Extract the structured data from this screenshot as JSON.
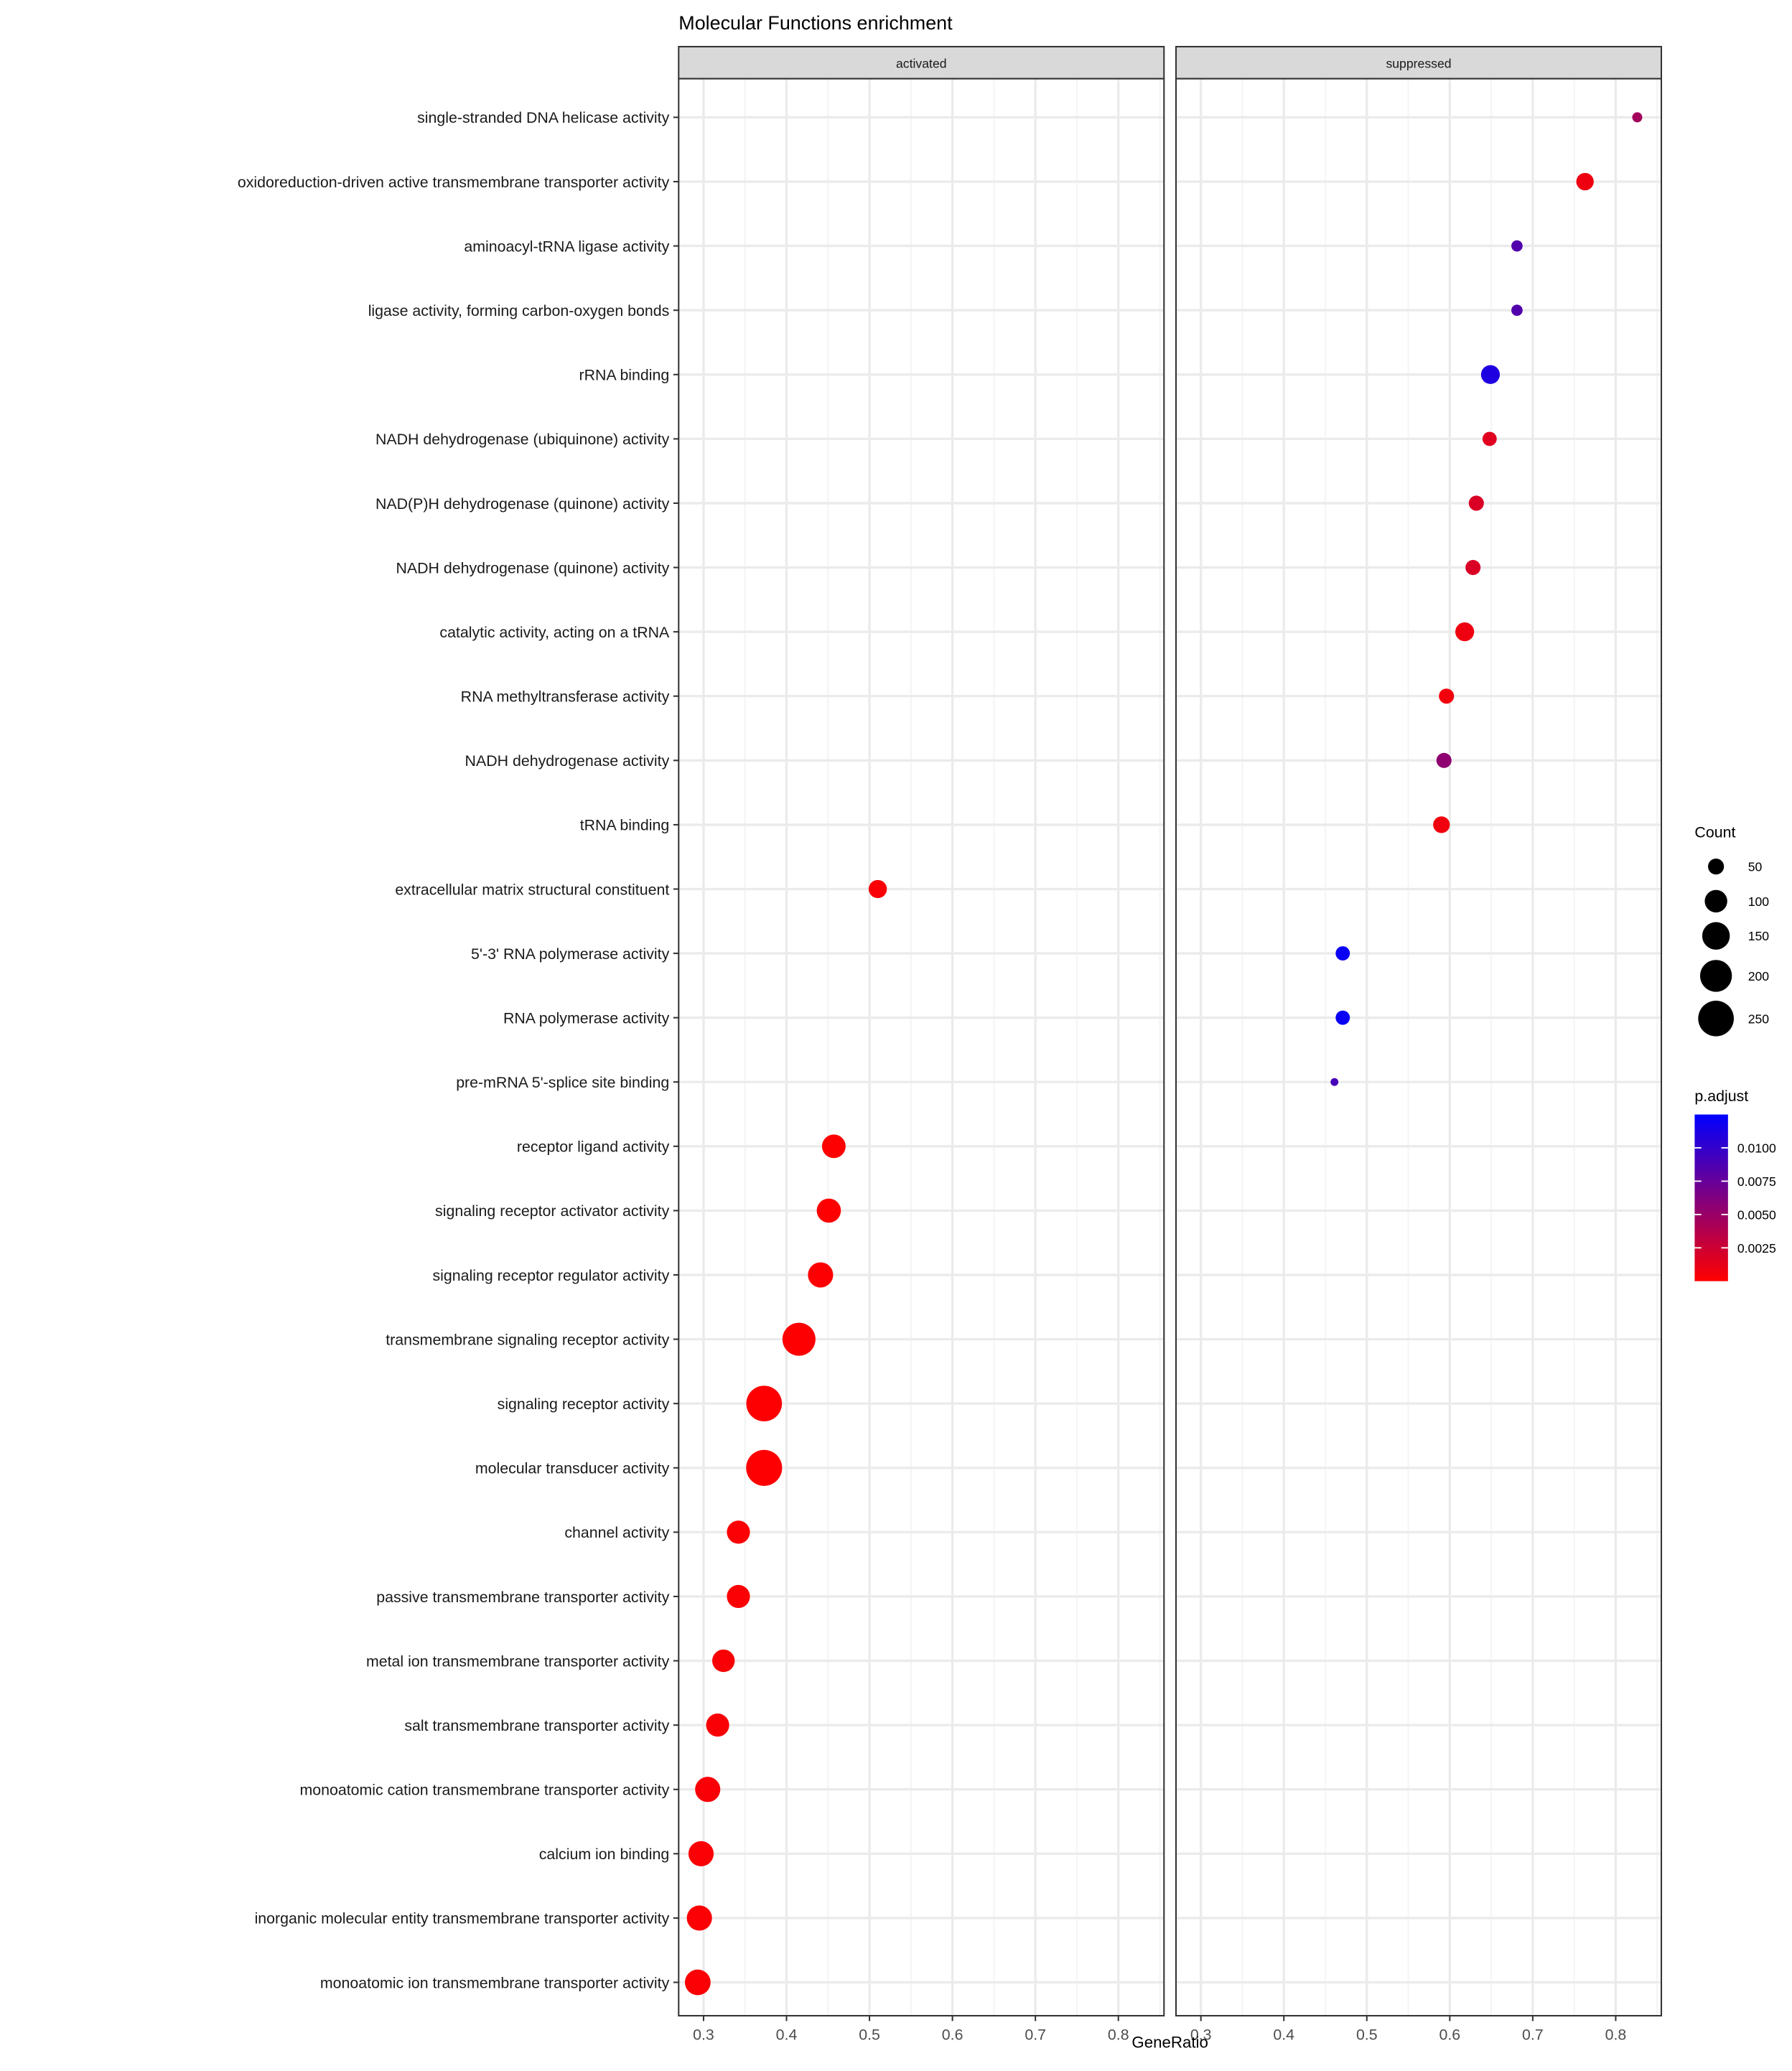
{
  "chart_data": {
    "type": "scatter",
    "title": "Molecular Functions enrichment",
    "xlabel": "GeneRatio",
    "ylabel": "",
    "facets": [
      "activated",
      "suppressed"
    ],
    "xlim": [
      0.27,
      0.855
    ],
    "xticks": [
      0.3,
      0.4,
      0.5,
      0.6,
      0.7,
      0.8
    ],
    "xtick_labels": [
      "0.3",
      "0.4",
      "0.5",
      "0.6",
      "0.7",
      "0.8"
    ],
    "grid": true,
    "categories": [
      "single-stranded DNA helicase activity",
      "oxidoreduction-driven active transmembrane transporter activity",
      "aminoacyl-tRNA ligase activity",
      "ligase activity, forming carbon-oxygen bonds",
      "rRNA binding",
      "NADH dehydrogenase (ubiquinone) activity",
      "NAD(P)H dehydrogenase (quinone) activity",
      "NADH dehydrogenase (quinone) activity",
      "catalytic activity, acting on a tRNA",
      "RNA methyltransferase activity",
      "NADH dehydrogenase activity",
      "tRNA binding",
      "extracellular matrix structural constituent",
      "5'-3' RNA polymerase activity",
      "RNA polymerase activity",
      "pre-mRNA 5'-splice site binding",
      "receptor ligand activity",
      "signaling receptor activator activity",
      "signaling receptor regulator activity",
      "transmembrane signaling receptor activity",
      "signaling receptor activity",
      "molecular transducer activity",
      "channel activity",
      "passive transmembrane transporter activity",
      "metal ion transmembrane transporter activity",
      "salt transmembrane transporter activity",
      "monoatomic cation transmembrane transporter activity",
      "calcium ion binding",
      "inorganic molecular entity transmembrane transporter activity",
      "monoatomic ion transmembrane transporter activity"
    ],
    "points": [
      {
        "category": "single-stranded DNA helicase activity",
        "facet": "suppressed",
        "gene_ratio": 0.826,
        "count": 20,
        "p_adjust": 0.0045
      },
      {
        "category": "oxidoreduction-driven active transmembrane transporter activity",
        "facet": "suppressed",
        "gene_ratio": 0.763,
        "count": 60,
        "p_adjust": 0.0008
      },
      {
        "category": "aminoacyl-tRNA ligase activity",
        "facet": "suppressed",
        "gene_ratio": 0.681,
        "count": 25,
        "p_adjust": 0.0085
      },
      {
        "category": "ligase activity, forming carbon-oxygen bonds",
        "facet": "suppressed",
        "gene_ratio": 0.681,
        "count": 25,
        "p_adjust": 0.0085
      },
      {
        "category": "rRNA binding",
        "facet": "suppressed",
        "gene_ratio": 0.649,
        "count": 70,
        "p_adjust": 0.011
      },
      {
        "category": "NADH dehydrogenase (ubiquinone) activity",
        "facet": "suppressed",
        "gene_ratio": 0.648,
        "count": 40,
        "p_adjust": 0.0015
      },
      {
        "category": "NAD(P)H dehydrogenase (quinone) activity",
        "facet": "suppressed",
        "gene_ratio": 0.632,
        "count": 45,
        "p_adjust": 0.0018
      },
      {
        "category": "NADH dehydrogenase (quinone) activity",
        "facet": "suppressed",
        "gene_ratio": 0.628,
        "count": 45,
        "p_adjust": 0.0018
      },
      {
        "category": "catalytic activity, acting on a tRNA",
        "facet": "suppressed",
        "gene_ratio": 0.618,
        "count": 70,
        "p_adjust": 0.0008
      },
      {
        "category": "RNA methyltransferase activity",
        "facet": "suppressed",
        "gene_ratio": 0.596,
        "count": 45,
        "p_adjust": 0.0006
      },
      {
        "category": "NADH dehydrogenase activity",
        "facet": "suppressed",
        "gene_ratio": 0.593,
        "count": 45,
        "p_adjust": 0.0055
      },
      {
        "category": "tRNA binding",
        "facet": "suppressed",
        "gene_ratio": 0.59,
        "count": 55,
        "p_adjust": 0.0007
      },
      {
        "category": "extracellular matrix structural constituent",
        "facet": "activated",
        "gene_ratio": 0.51,
        "count": 65,
        "p_adjust": 0.0003
      },
      {
        "category": "5'-3' RNA polymerase activity",
        "facet": "suppressed",
        "gene_ratio": 0.471,
        "count": 40,
        "p_adjust": 0.012
      },
      {
        "category": "RNA polymerase activity",
        "facet": "suppressed",
        "gene_ratio": 0.471,
        "count": 40,
        "p_adjust": 0.012
      },
      {
        "category": "pre-mRNA 5'-splice site binding",
        "facet": "suppressed",
        "gene_ratio": 0.461,
        "count": 12,
        "p_adjust": 0.009
      },
      {
        "category": "receptor ligand activity",
        "facet": "activated",
        "gene_ratio": 0.457,
        "count": 110,
        "p_adjust": 0.0001
      },
      {
        "category": "signaling receptor activator activity",
        "facet": "activated",
        "gene_ratio": 0.451,
        "count": 115,
        "p_adjust": 0.0001
      },
      {
        "category": "signaling receptor regulator activity",
        "facet": "activated",
        "gene_ratio": 0.441,
        "count": 125,
        "p_adjust": 0.0001
      },
      {
        "category": "transmembrane signaling receptor activity",
        "facet": "activated",
        "gene_ratio": 0.415,
        "count": 215,
        "p_adjust": 0.0001
      },
      {
        "category": "signaling receptor activity",
        "facet": "activated",
        "gene_ratio": 0.373,
        "count": 250,
        "p_adjust": 0.0001
      },
      {
        "category": "molecular transducer activity",
        "facet": "activated",
        "gene_ratio": 0.373,
        "count": 255,
        "p_adjust": 0.0001
      },
      {
        "category": "channel activity",
        "facet": "activated",
        "gene_ratio": 0.342,
        "count": 105,
        "p_adjust": 0.0002
      },
      {
        "category": "passive transmembrane transporter activity",
        "facet": "activated",
        "gene_ratio": 0.342,
        "count": 105,
        "p_adjust": 0.0002
      },
      {
        "category": "metal ion transmembrane transporter activity",
        "facet": "activated",
        "gene_ratio": 0.324,
        "count": 100,
        "p_adjust": 0.0003
      },
      {
        "category": "salt transmembrane transporter activity",
        "facet": "activated",
        "gene_ratio": 0.317,
        "count": 105,
        "p_adjust": 0.0003
      },
      {
        "category": "monoatomic cation transmembrane transporter activity",
        "facet": "activated",
        "gene_ratio": 0.305,
        "count": 125,
        "p_adjust": 0.0003
      },
      {
        "category": "calcium ion binding",
        "facet": "activated",
        "gene_ratio": 0.297,
        "count": 125,
        "p_adjust": 0.0002
      },
      {
        "category": "inorganic molecular entity transmembrane transporter activity",
        "facet": "activated",
        "gene_ratio": 0.295,
        "count": 125,
        "p_adjust": 0.0002
      },
      {
        "category": "monoatomic ion transmembrane transporter activity",
        "facet": "activated",
        "gene_ratio": 0.293,
        "count": 130,
        "p_adjust": 0.0002
      }
    ],
    "legend_size": {
      "title": "Count",
      "values": [
        50,
        100,
        150,
        200,
        250
      ],
      "labels": [
        "50",
        "100",
        "150",
        "200",
        "250"
      ]
    },
    "legend_color": {
      "title": "p.adjust",
      "range": [
        0.0,
        0.0125
      ],
      "ticks": [
        0.0025,
        0.005,
        0.0075,
        0.01
      ],
      "labels": [
        "0.0025",
        "0.0050",
        "0.0075",
        "0.0100"
      ],
      "low_color": "#FF0000",
      "high_color": "#0000FF"
    },
    "legend_position": "right",
    "colors": {
      "panel_background": "#FFFFFF",
      "panel_border": "#333333",
      "grid_major": "#EBEBEB",
      "grid_minor": "#F5F5F5",
      "strip_background": "#D9D9D9",
      "text": "#000000"
    }
  }
}
